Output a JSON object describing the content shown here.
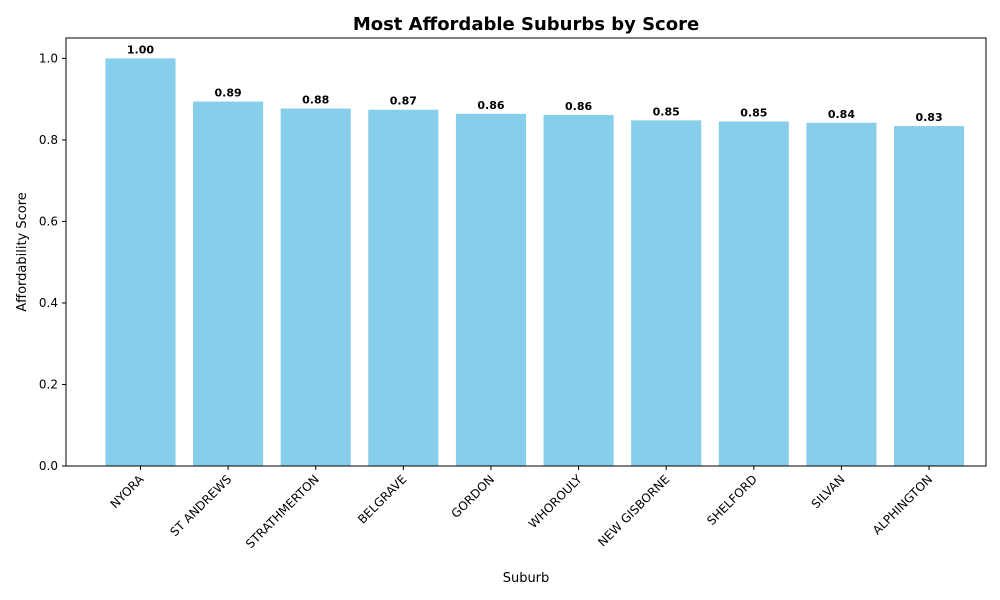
{
  "chart_data": {
    "type": "bar",
    "title": "Most Affordable Suburbs by Score",
    "xlabel": "Suburb",
    "ylabel": "Affordability Score",
    "categories": [
      "NYORA",
      "ST ANDREWS",
      "STRATHMERTON",
      "BELGRAVE",
      "GORDON",
      "WHOROULY",
      "NEW GISBORNE",
      "SHELFORD",
      "SILVAN",
      "ALPHINGTON"
    ],
    "values": [
      1.0,
      0.894,
      0.877,
      0.874,
      0.864,
      0.861,
      0.848,
      0.845,
      0.842,
      0.834
    ],
    "value_labels": [
      "1.00",
      "0.89",
      "0.88",
      "0.87",
      "0.86",
      "0.86",
      "0.85",
      "0.85",
      "0.84",
      "0.83"
    ],
    "ylim": [
      0,
      1.05
    ],
    "yticks": [
      0.0,
      0.2,
      0.4,
      0.6,
      0.8,
      1.0
    ],
    "ytick_labels": [
      "0.0",
      "0.2",
      "0.4",
      "0.6",
      "0.8",
      "1.0"
    ],
    "bar_color": "#87CEEB",
    "grid": false,
    "legend": false
  }
}
